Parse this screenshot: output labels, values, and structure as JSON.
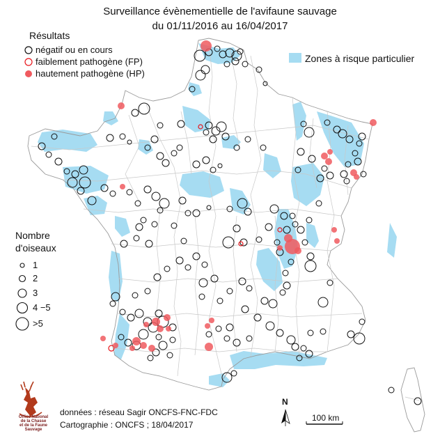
{
  "title": {
    "line1": "Surveillance évènementielle de l'avifaune sauvage",
    "line2": "du 01/11/2016 au 16/04/2017"
  },
  "legend_results": {
    "heading": "Résultats",
    "items": [
      {
        "label": "négatif ou en cours",
        "style": "open",
        "color": "#111111"
      },
      {
        "label": "faiblement pathogène (FP)",
        "style": "open",
        "color": "#e8151b"
      },
      {
        "label": "hautement pathogène (HP)",
        "style": "filled",
        "color": "#f05a5f"
      }
    ]
  },
  "legend_zones": {
    "label": "Zones à risque particulier",
    "color": "#a6dcf2"
  },
  "legend_size": {
    "heading_line1": "Nombre",
    "heading_line2": "d'oiseaux",
    "items": [
      "1",
      "2",
      "3",
      "4 −5",
      ">5"
    ]
  },
  "footer": {
    "data_source": "données : réseau Sagir ONCFS-FNC-FDC",
    "cartography": "Cartographie : ONCFS ; 18/04/2017"
  },
  "logo": {
    "line1": "Office National",
    "line2": "de la Chasse",
    "line3": "et de la Faune Sauvage"
  },
  "north_label": "N",
  "scale_label": "100 km",
  "colors": {
    "negative": "#111111",
    "fp": "#e8151b",
    "hp": "#f05a5f",
    "zone": "#a6dcf2",
    "border": "#bdbdbd"
  }
}
